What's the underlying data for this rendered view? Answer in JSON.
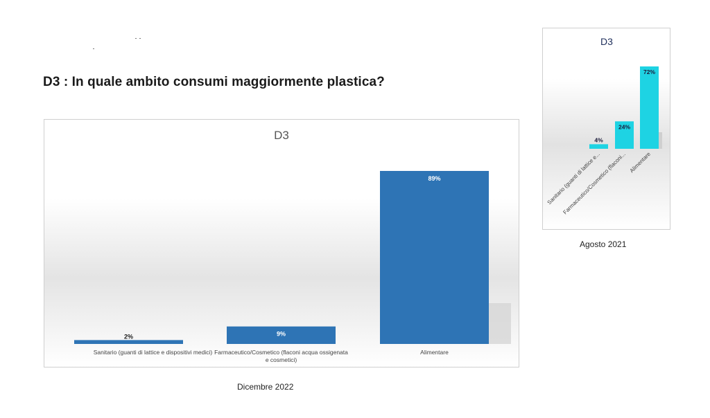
{
  "heading": "D3 : In quale ambito consumi maggiormente plastica?",
  "chart_data": [
    {
      "type": "bar",
      "title": "D3",
      "caption": "Dicembre 2022",
      "categories": [
        "Sanitario (guanti di lattice e dispositivi medici)",
        "Farmaceutico/Cosmetico (flaconi acqua ossigenata e cosmetici)",
        "Alimentare"
      ],
      "values": [
        2,
        9,
        89
      ],
      "labels": [
        "2%",
        "9%",
        "89%"
      ],
      "ylim": [
        0,
        100
      ],
      "color": "#2e74b5",
      "grid": false
    },
    {
      "type": "bar",
      "title": "D3",
      "caption": "Agosto 2021",
      "categories": [
        "Sanitario (guanti di lattice e...",
        "Farmaceutico/Cosmetico (flaconi...",
        "Alimentare"
      ],
      "values": [
        4,
        24,
        72
      ],
      "labels": [
        "4%",
        "24%",
        "72%"
      ],
      "ylim": [
        0,
        100
      ],
      "color": "#1ed3e3",
      "grid": false
    }
  ]
}
